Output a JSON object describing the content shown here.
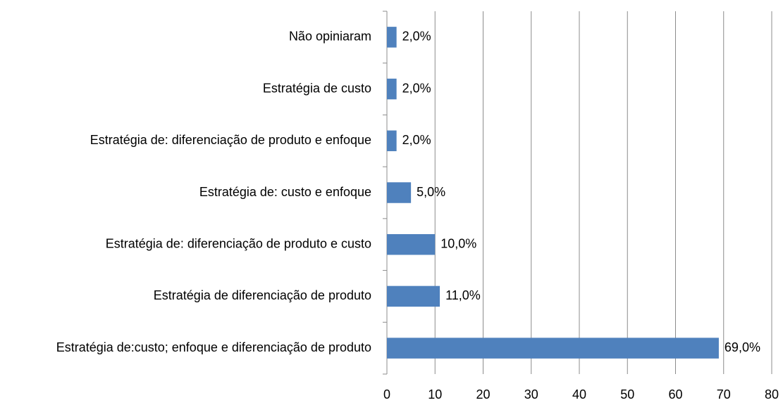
{
  "chart_data": {
    "type": "barh",
    "categories": [
      "Não opiniaram",
      "Estratégia de custo ",
      "Estratégia de: diferenciação de produto e enfoque",
      "Estratégia de: custo e enfoque",
      "Estratégia de: diferenciação de produto e custo",
      "Estratégia de diferenciação de produto",
      "Estratégia de:custo; enfoque e diferenciação de produto"
    ],
    "values": [
      2,
      2,
      2,
      5,
      10,
      11,
      69
    ],
    "value_labels": [
      "2,0%",
      "2,0%",
      "2,0%",
      "5,0%",
      "10,0%",
      "11,0%",
      "69,0%"
    ],
    "color": "#4f81bd",
    "xlim": [
      0,
      80
    ],
    "xticks": [
      0,
      10,
      20,
      30,
      40,
      50,
      60,
      70,
      80
    ],
    "grid": true
  }
}
